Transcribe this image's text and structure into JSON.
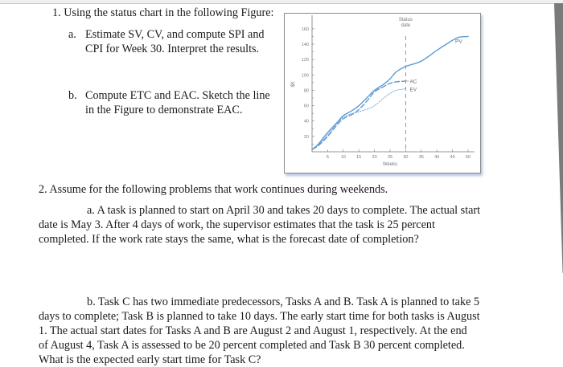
{
  "question1": {
    "heading": "1. Using the status chart in the following Figure:",
    "part_a": {
      "marker": "a.",
      "line1": "Estimate SV, CV, and compute SPI and",
      "line2": "CPI for Week 30. Interpret the results."
    },
    "part_b": {
      "marker": "b.",
      "line1": "Compute ETC and EAC. Sketch the line",
      "line2": "in the Figure to demonstrate EAC."
    }
  },
  "question2": {
    "heading": "2. Assume for the following problems that work continues during weekends.",
    "part_a": {
      "line1": "a. A task is planned to start on April 30 and takes 20 days to complete. The actual start",
      "line2": "date is May 3. After 4 days of work, the supervisor estimates that the task is 25 percent",
      "line3": "completed. If the work rate stays the same, what is the forecast date of completion?"
    },
    "part_b": {
      "line1": "b. Task C has two immediate predecessors, Tasks A and B. Task A is planned to take 5",
      "line2": "days to complete; Task B is planned to take 10 days. The early start time for both tasks is August",
      "line3": "1. The actual start dates for Tasks A and B are August 2 and August 1, respectively. At the end",
      "line4": "of August 4, Task A is assessed to be 20 percent completed and Task B 30 percent completed.",
      "line5": "What is the expected early start time for Task C?"
    }
  },
  "colors": {
    "line": "#5b9bd5",
    "frame": "#8c8c8c",
    "axis_text": "#777777",
    "status_line": "#888888",
    "right_wedge": "#7a7a7a"
  },
  "chart_data": {
    "type": "line",
    "title": "",
    "xlabel": "Weeks",
    "ylabel": "$K",
    "xlim": [
      0,
      50
    ],
    "ylim": [
      0,
      170
    ],
    "x_ticks": [
      5,
      10,
      15,
      20,
      25,
      30,
      35,
      40,
      45,
      50
    ],
    "y_ticks": [
      20,
      40,
      60,
      80,
      100,
      120,
      140,
      160
    ],
    "grid": false,
    "annotations": [
      {
        "text": "Status date",
        "x": 30,
        "type": "vertical-dashed-line"
      }
    ],
    "series": [
      {
        "name": "PV",
        "style": "solid",
        "x": [
          0,
          2,
          5,
          8,
          10,
          13,
          15,
          18,
          20,
          23,
          25,
          27,
          30,
          35,
          40,
          45,
          47,
          50
        ],
        "values": [
          3,
          10,
          25,
          38,
          47,
          54,
          60,
          72,
          80,
          88,
          95,
          104,
          111,
          118,
          132,
          145,
          149,
          150
        ]
      },
      {
        "name": "AC",
        "style": "dashed",
        "x": [
          0,
          2,
          5,
          8,
          10,
          13,
          15,
          18,
          20,
          23,
          25,
          27,
          30
        ],
        "values": [
          3,
          8,
          20,
          35,
          43,
          49,
          55,
          68,
          78,
          85,
          89,
          91,
          92
        ]
      },
      {
        "name": "EV",
        "style": "dotted",
        "x": [
          0,
          2,
          5,
          8,
          10,
          13,
          15,
          18,
          20,
          23,
          25,
          27,
          30
        ],
        "values": [
          3,
          9,
          22,
          37,
          45,
          50,
          52,
          56,
          60,
          70,
          76,
          80,
          82
        ]
      }
    ]
  }
}
